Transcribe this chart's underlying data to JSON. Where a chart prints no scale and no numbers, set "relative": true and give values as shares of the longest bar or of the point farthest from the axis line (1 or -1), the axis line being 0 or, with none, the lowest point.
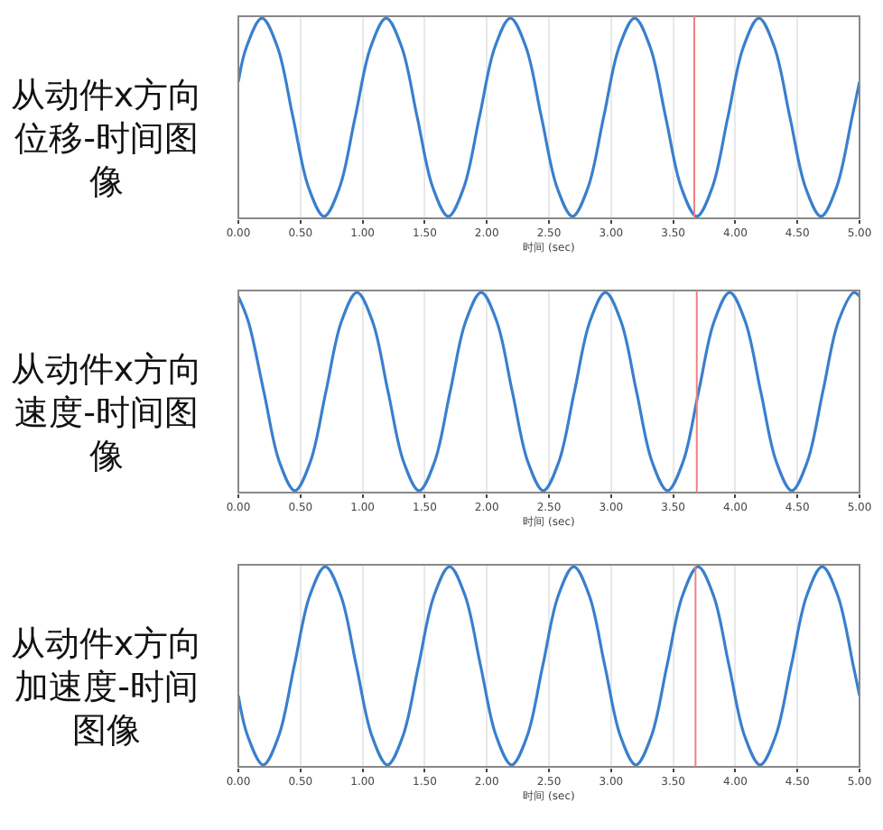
{
  "chart_data": [
    {
      "type": "line",
      "title": "从动件x方向位移-时间图像",
      "xlabel": "时间 (sec)",
      "relative": true,
      "grid": "x",
      "xlim": [
        0,
        5
      ],
      "xticks": [
        {
          "value": 0,
          "label": "0.00"
        },
        {
          "value": 0.5,
          "label": "0.50"
        },
        {
          "value": 1,
          "label": "1.00"
        },
        {
          "value": 1.5,
          "label": "1.50"
        },
        {
          "value": 2,
          "label": "2.00"
        },
        {
          "value": 2.5,
          "label": "2.50"
        },
        {
          "value": 3,
          "label": "3.00"
        },
        {
          "value": 3.5,
          "label": "3.50"
        },
        {
          "value": 4,
          "label": "4.00"
        },
        {
          "value": 4.5,
          "label": "4.50"
        },
        {
          "value": 5,
          "label": "5.00"
        }
      ],
      "ref_lines": [
        {
          "axis": "x",
          "value": 3.67,
          "color": "#f08080"
        }
      ],
      "series": [
        {
          "color": "#3a7fcc",
          "x": [
            0,
            0.065,
            0.19,
            0.315,
            0.44,
            0.565,
            0.69,
            0.815,
            0.94,
            1.065,
            1.19,
            1.315,
            1.44,
            1.565,
            1.69,
            1.815,
            1.94,
            2.065,
            2.19,
            2.315,
            2.44,
            2.565,
            2.69,
            2.815,
            2.94,
            3.065,
            3.19,
            3.315,
            3.44,
            3.565,
            3.69,
            3.815,
            3.94,
            4.065,
            4.19,
            4.315,
            4.44,
            4.565,
            4.69,
            4.815,
            4.94,
            5
          ],
          "values": [
            0.68,
            0.854,
            1,
            0.854,
            0.5,
            0.146,
            0,
            0.146,
            0.5,
            0.854,
            1,
            0.854,
            0.5,
            0.146,
            0,
            0.146,
            0.5,
            0.854,
            1,
            0.854,
            0.5,
            0.146,
            0,
            0.146,
            0.5,
            0.854,
            1,
            0.854,
            0.5,
            0.146,
            0,
            0.146,
            0.5,
            0.854,
            1,
            0.854,
            0.5,
            0.146,
            0,
            0.146,
            0.5,
            0.68
          ]
        }
      ]
    },
    {
      "type": "line",
      "title": "从动件x方向速度-时间图像",
      "xlabel": "时间 (sec)",
      "relative": true,
      "grid": "x",
      "xlim": [
        0,
        5
      ],
      "xticks": [
        {
          "value": 0,
          "label": "0.00"
        },
        {
          "value": 0.5,
          "label": "0.50"
        },
        {
          "value": 1,
          "label": "1.00"
        },
        {
          "value": 1.5,
          "label": "1.50"
        },
        {
          "value": 2,
          "label": "2.00"
        },
        {
          "value": 2.5,
          "label": "2.50"
        },
        {
          "value": 3,
          "label": "3.00"
        },
        {
          "value": 3.5,
          "label": "3.50"
        },
        {
          "value": 4,
          "label": "4.00"
        },
        {
          "value": 4.5,
          "label": "4.50"
        },
        {
          "value": 5,
          "label": "5.00"
        }
      ],
      "ref_lines": [
        {
          "axis": "x",
          "value": 3.69,
          "color": "#f08080"
        }
      ],
      "series": [
        {
          "color": "#3a7fcc",
          "x": [
            0,
            0.08,
            0.205,
            0.33,
            0.455,
            0.58,
            0.705,
            0.83,
            0.955,
            1.08,
            1.205,
            1.33,
            1.455,
            1.58,
            1.705,
            1.83,
            1.955,
            2.08,
            2.205,
            2.33,
            2.455,
            2.58,
            2.705,
            2.83,
            2.955,
            3.08,
            3.205,
            3.33,
            3.455,
            3.58,
            3.705,
            3.83,
            3.955,
            4.08,
            4.205,
            4.33,
            4.455,
            4.58,
            4.705,
            4.83,
            4.955,
            5
          ],
          "values": [
            0.98,
            0.854,
            0.5,
            0.146,
            0,
            0.146,
            0.5,
            0.854,
            1,
            0.854,
            0.5,
            0.146,
            0,
            0.146,
            0.5,
            0.854,
            1,
            0.854,
            0.5,
            0.146,
            0,
            0.146,
            0.5,
            0.854,
            1,
            0.854,
            0.5,
            0.146,
            0,
            0.146,
            0.5,
            0.854,
            1,
            0.854,
            0.5,
            0.146,
            0,
            0.146,
            0.5,
            0.854,
            1,
            0.98
          ]
        }
      ]
    },
    {
      "type": "line",
      "title": "从动件x方向加速度-时间图像",
      "xlabel": "时间 (sec)",
      "relative": true,
      "grid": "x",
      "xlim": [
        0,
        5
      ],
      "xticks": [
        {
          "value": 0,
          "label": "0.00"
        },
        {
          "value": 0.5,
          "label": "0.50"
        },
        {
          "value": 1,
          "label": "1.00"
        },
        {
          "value": 1.5,
          "label": "1.50"
        },
        {
          "value": 2,
          "label": "2.00"
        },
        {
          "value": 2.5,
          "label": "2.50"
        },
        {
          "value": 3,
          "label": "3.00"
        },
        {
          "value": 3.5,
          "label": "3.50"
        },
        {
          "value": 4,
          "label": "4.00"
        },
        {
          "value": 4.5,
          "label": "4.50"
        },
        {
          "value": 5,
          "label": "5.00"
        }
      ],
      "ref_lines": [
        {
          "axis": "x",
          "value": 3.68,
          "color": "#f08080"
        }
      ],
      "series": [
        {
          "color": "#3a7fcc",
          "x": [
            0,
            0.075,
            0.2,
            0.325,
            0.45,
            0.575,
            0.7,
            0.825,
            0.95,
            1.075,
            1.2,
            1.325,
            1.45,
            1.575,
            1.7,
            1.825,
            1.95,
            2.075,
            2.2,
            2.325,
            2.45,
            2.575,
            2.7,
            2.825,
            2.95,
            3.075,
            3.2,
            3.325,
            3.45,
            3.575,
            3.7,
            3.825,
            3.95,
            4.075,
            4.2,
            4.325,
            4.45,
            4.575,
            4.7,
            4.825,
            4.95,
            5
          ],
          "values": [
            0.35,
            0.146,
            0,
            0.146,
            0.5,
            0.854,
            1,
            0.854,
            0.5,
            0.146,
            0,
            0.146,
            0.5,
            0.854,
            1,
            0.854,
            0.5,
            0.146,
            0,
            0.146,
            0.5,
            0.854,
            1,
            0.854,
            0.5,
            0.146,
            0,
            0.146,
            0.5,
            0.854,
            1,
            0.854,
            0.5,
            0.146,
            0,
            0.146,
            0.5,
            0.854,
            1,
            0.854,
            0.5,
            0.35
          ]
        }
      ]
    }
  ]
}
